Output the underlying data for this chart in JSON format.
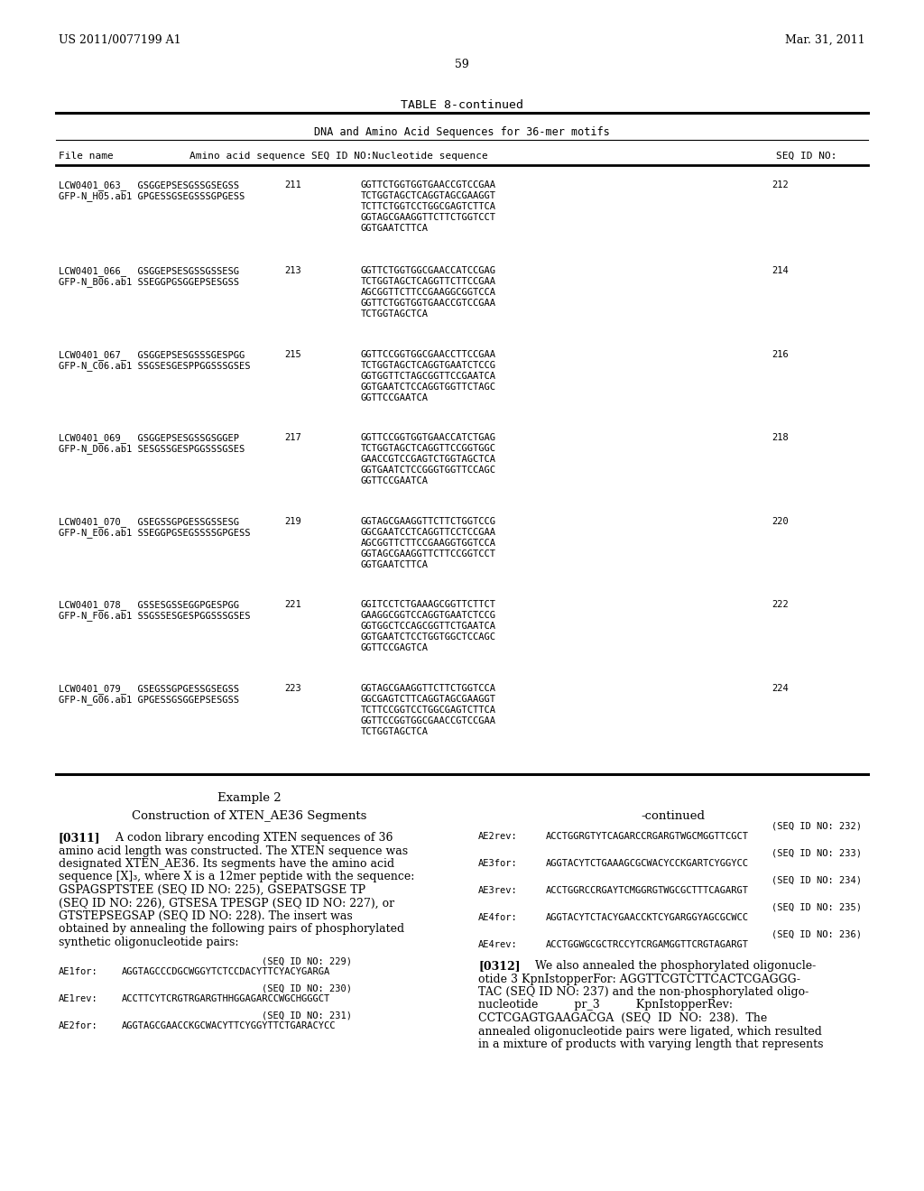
{
  "header_left": "US 2011/0077199 A1",
  "header_right": "Mar. 31, 2011",
  "page_number": "59",
  "table_title": "TABLE 8-continued",
  "table_subtitle": "DNA and Amino Acid Sequences for 36-mer motifs",
  "table_rows": [
    {
      "file1": "LCW0401_063_  GSGGEPSESGSSGSEGSS",
      "file2": "GFP-N_H05.ab1 GPGESSGSEGSSSGPGESS",
      "seq_id1": "211",
      "nucleotide": [
        "GGTTCTGGTGGTGAACCGTCCGAA",
        "TCTGGTAGCTCAGGTAGCGAAGGT",
        "TCTTCTGGTCCTGGCGAGTCTTCA",
        "GGTAGCGAAGGTTCTTCTGGTCCT",
        "GGTGAATCTTCA"
      ],
      "seq_id2": "212"
    },
    {
      "file1": "LCW0401_066_  GSGGEPSESGSSGSSESG",
      "file2": "GFP-N_B06.ab1 SSEGGPGSGGEPSESGSS",
      "seq_id1": "213",
      "nucleotide": [
        "GGTTCTGGTGGCGAACCATCCGAG",
        "TCTGGTAGCTCAGGTTCTTCCGAA",
        "AGCGGTTCTTCCGAAGGCGGTCCA",
        "GGTTCTGGTGGTGAACCGTCCGAA",
        "TCTGGTAGCTCA"
      ],
      "seq_id2": "214"
    },
    {
      "file1": "LCW0401_067_  GSGGEPSESGSSSGESPGG",
      "file2": "GFP-N_C06.ab1 SSGSESGESPPGGSSSGSES",
      "seq_id1": "215",
      "nucleotide": [
        "GGTTCCGGTGGCGAACCTTCCGAA",
        "TCTGGTAGCTCAGGTGAATCTCCG",
        "GGTGGTTCTAGCGGTTCCGAATCA",
        "GGTGAATCTCCAGGTGGTTCTAGC",
        "GGTTCCGAATCA"
      ],
      "seq_id2": "216"
    },
    {
      "file1": "LCW0401_069_  GSGGEPSESGSSGSGGEP",
      "file2": "GFP-N_D06.ab1 SESGSSGESPGGSSSGSES",
      "seq_id1": "217",
      "nucleotide": [
        "GGTTCCGGTGGTGAACCATCTGAG",
        "TCTGGTAGCTCAGGTTCCGGTGGC",
        "GAACCGTCCGAGTCTGGTAGCTCA",
        "GGTGAATCTCCGGGTGGTTCCAGC",
        "GGTTCCGAATCA"
      ],
      "seq_id2": "218"
    },
    {
      "file1": "LCW0401_070_  GSEGSSGPGESSGSSESG",
      "file2": "GFP-N_E06.ab1 SSEGGPGSEGSSSSGPGESS",
      "seq_id1": "219",
      "nucleotide": [
        "GGTAGCGAAGGTTCTTCTGGTCCG",
        "GGCGAATCCTCAGGTTCCTCCGAA",
        "AGCGGTTCTTCCGAAGGTGGTCCA",
        "GGTAGCGAAGGTTCTTCCGGTCCT",
        "GGTGAATCTTCA"
      ],
      "seq_id2": "220"
    },
    {
      "file1": "LCW0401_078_  GSSESGSSEGGPGESPGG",
      "file2": "GFP-N_F06.ab1 SSGSSESGESPGGSSSGSES",
      "seq_id1": "221",
      "nucleotide": [
        "GGITCCTCTGAAAGCGGTTCTTCT",
        "GAAGGCGGTCCAGGTGAATCTCCG",
        "GGTGGCTCCAGCGGTTCTGAATCA",
        "GGTGAATCTCCTGGTGGCTCCAGC",
        "GGTTCCGAGTCA"
      ],
      "seq_id2": "222"
    },
    {
      "file1": "LCW0401_079_  GSEGSSGPGESSGSEGSS",
      "file2": "GFP-N_G06.ab1 GPGESSGSGGEPSESGSS",
      "seq_id1": "223",
      "nucleotide": [
        "GGTAGCGAAGGTTCTTCTGGTCCA",
        "GGCGAGTCTTCAGGTAGCGAAGGT",
        "TCTTCCGGTCCTGGCGAGTCTTCA",
        "GGTTCCGGTGGCGAACCGTCCGAA",
        "TCTGGTAGCTCA"
      ],
      "seq_id2": "224"
    }
  ],
  "example_title": "Example 2",
  "example_subtitle": "Construction of XTEN_AE36 Segments",
  "para_0311_lines": [
    "[0311]   A codon library encoding XTEN sequences of 36",
    "amino acid length was constructed. The XTEN sequence was",
    "designated XTEN_AE36. Its segments have the amino acid",
    "sequence [X]₃, where X is a 12mer peptide with the sequence:",
    "GSPAGSPTSTEE (SEQ ID NO: 225), GSEPATSGSE TP",
    "(SEQ ID NO: 226), GTSESA TPESGP (SEQ ID NO: 227), or",
    "GTSTEPSEGSAP (SEQ ID NO: 228). The insert was",
    "obtained by annealing the following pairs of phosphorylated",
    "synthetic oligonucleotide pairs:"
  ],
  "seq_left": [
    {
      "label": "(SEQ ID NO: 229)",
      "name": "AE1for:",
      "seq": "AGGTAGCCCDGCWGGYTCTCCDACYTTCYACYGARGA"
    },
    {
      "label": "(SEQ ID NO: 230)",
      "name": "AE1rev:",
      "seq": "ACCTTCYTCRGTRGARGTHHGGAGARCCWGCHGGGCT"
    },
    {
      "label": "(SEQ ID NO: 231)",
      "name": "AE2for:",
      "seq": "AGGTAGCGAACCKGCWACYTTCYGGYTTCTGARACYCC"
    }
  ],
  "continued_label": "-continued",
  "seq_right": [
    {
      "label": "(SEQ ID NO: 232)",
      "name": "AE2rev:",
      "seq": "ACCTGGRGTYTCAGARCCRGARGTWGCMGGTTCGCT"
    },
    {
      "label": "(SEQ ID NO: 233)",
      "name": "AE3for:",
      "seq": "AGGTACYTCTGAAAGCGCWACYCCKGARTCYGGYCC"
    },
    {
      "label": "(SEQ ID NO: 234)",
      "name": "AE3rev:",
      "seq": "ACCTGGRCCRGAYTCMGGRGTWGCGCTTTCAGARGT"
    },
    {
      "label": "(SEQ ID NO: 235)",
      "name": "AE4for:",
      "seq": "AGGTACYTCTACYGAACCKTCYGARGGYAGCGCWCC"
    },
    {
      "label": "(SEQ ID NO: 236)",
      "name": "AE4rev:",
      "seq": "ACCTGGWGCGCTRCCYTCRGAMGGTTCRGTAGARGT"
    }
  ],
  "para_0312_lines": [
    "[0312]   We also annealed the phosphorylated oligonucle-",
    "otide 3 KpnIstopperFor: AGGTTCGTCTTCACTCGAGGG-",
    "TAC (SEQ ID NO: 237) and the non-phosphorylated oligo-",
    "nucleotide          pr_3          KpnIstopperRev:",
    "CCTCGAGTGAAGACGA  (SEQ  ID  NO:  238).  The",
    "annealed oligonucleotide pairs were ligated, which resulted",
    "in a mixture of products with varying length that represents"
  ]
}
